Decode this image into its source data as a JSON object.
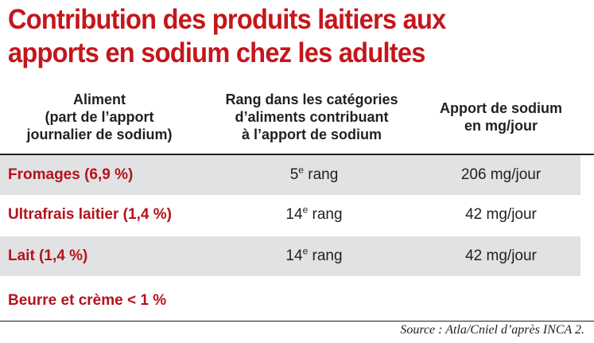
{
  "title_line1": "Contribution des produits laitiers aux",
  "title_line2": "apports en sodium chez les adultes",
  "headers": {
    "col1": [
      "Aliment",
      "(part de l’apport",
      "journalier de sodium)"
    ],
    "col2": [
      "Rang dans les catégories",
      "d’aliments contribuant",
      "à l’apport de sodium"
    ],
    "col3": [
      "Apport de sodium",
      "en mg/jour"
    ]
  },
  "rows": [
    {
      "food": "Fromages (6,9 %)",
      "rank_num": "5",
      "rank_sup": "e",
      "rank_word": " rang",
      "amount": "206 mg/jour"
    },
    {
      "food": "Ultrafrais laitier (1,4 %)",
      "rank_num": "14",
      "rank_sup": "e",
      "rank_word": " rang",
      "amount": "42 mg/jour"
    },
    {
      "food": "Lait (1,4 %)",
      "rank_num": "14",
      "rank_sup": "e",
      "rank_word": " rang",
      "amount": "42 mg/jour"
    },
    {
      "food": "Beurre et crème < 1 %",
      "rank_num": "",
      "rank_sup": "",
      "rank_word": "",
      "amount": ""
    }
  ],
  "source": "Source : Atla/Cniel d’après INCA 2."
}
